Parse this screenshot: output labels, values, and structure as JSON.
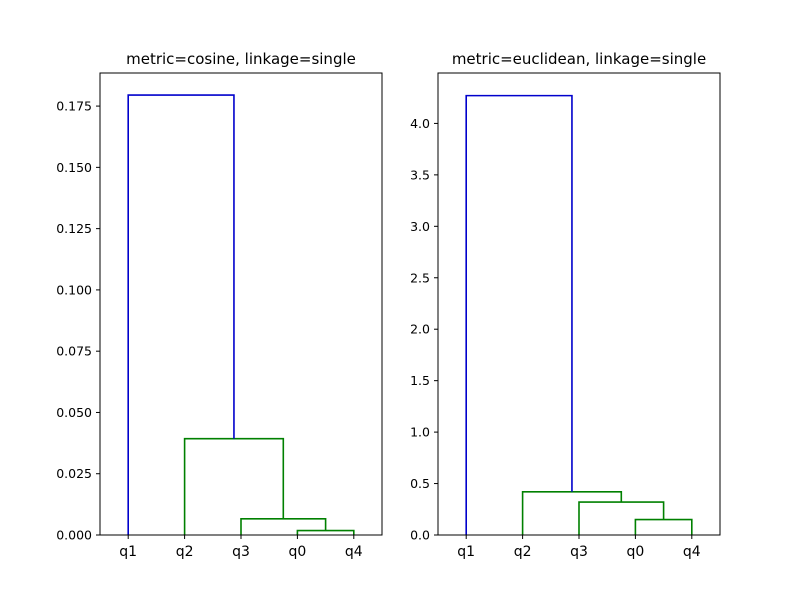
{
  "chart_data": [
    {
      "type": "dendrogram",
      "title": "metric=cosine, linkage=single",
      "leaves": [
        "q1",
        "q2",
        "q3",
        "q0",
        "q4"
      ],
      "ylim": [
        0,
        0.1885
      ],
      "yticks": [
        0.0,
        0.025,
        0.05,
        0.075,
        0.1,
        0.125,
        0.15,
        0.175
      ],
      "ytick_labels": [
        "0.000",
        "0.025",
        "0.050",
        "0.075",
        "0.100",
        "0.125",
        "0.150",
        "0.175"
      ],
      "links": [
        {
          "left": "q0",
          "right": "q4",
          "height": 0.0018,
          "color": "#008000"
        },
        {
          "left": "q3",
          "right": "(q0,q4)",
          "height": 0.0066,
          "color": "#008000"
        },
        {
          "left": "q2",
          "right": "(q3,q0,q4)",
          "height": 0.0393,
          "color": "#008000"
        },
        {
          "left": "q1",
          "right": "(q2,q3,q0,q4)",
          "height": 0.1795,
          "color": "#0000cc"
        }
      ],
      "grid": false
    },
    {
      "type": "dendrogram",
      "title": "metric=euclidean, linkage=single",
      "leaves": [
        "q1",
        "q2",
        "q3",
        "q0",
        "q4"
      ],
      "ylim": [
        0,
        4.49
      ],
      "yticks": [
        0.0,
        0.5,
        1.0,
        1.5,
        2.0,
        2.5,
        3.0,
        3.5,
        4.0
      ],
      "ytick_labels": [
        "0.0",
        "0.5",
        "1.0",
        "1.5",
        "2.0",
        "2.5",
        "3.0",
        "3.5",
        "4.0"
      ],
      "links": [
        {
          "left": "q0",
          "right": "q4",
          "height": 0.15,
          "color": "#008000"
        },
        {
          "left": "q3",
          "right": "(q0,q4)",
          "height": 0.32,
          "color": "#008000"
        },
        {
          "left": "q2",
          "right": "(q3,q0,q4)",
          "height": 0.42,
          "color": "#008000"
        },
        {
          "left": "q1",
          "right": "(q2,q3,q0,q4)",
          "height": 4.27,
          "color": "#0000cc"
        }
      ],
      "grid": false
    }
  ]
}
